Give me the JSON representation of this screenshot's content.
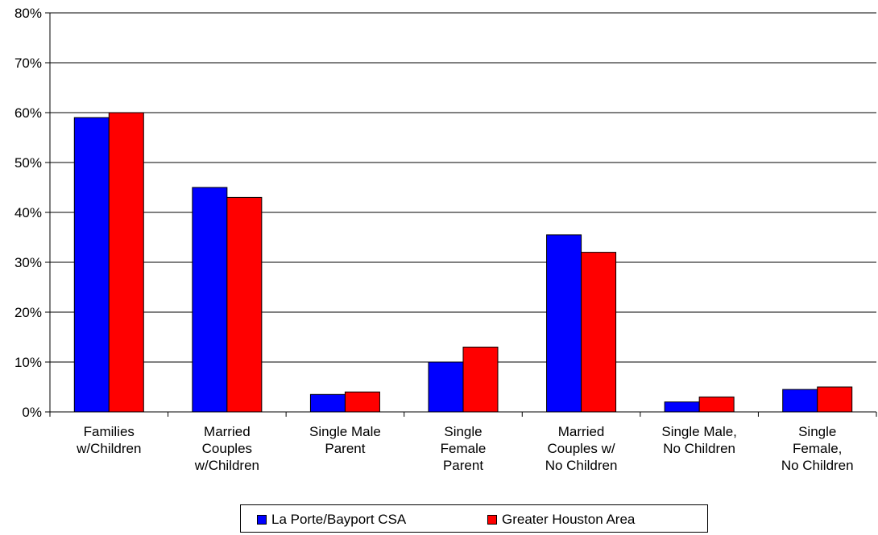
{
  "chart_data": {
    "type": "bar",
    "categories": [
      [
        "Families",
        "w/Children"
      ],
      [
        "Married",
        "Couples",
        "w/Children"
      ],
      [
        "Single Male",
        "Parent"
      ],
      [
        "Single",
        "Female",
        "Parent"
      ],
      [
        "Married",
        "Couples w/",
        "No Children"
      ],
      [
        "Single Male,",
        "No Children"
      ],
      [
        "Single",
        "Female,",
        "No Children"
      ]
    ],
    "series": [
      {
        "name": "La Porte/Bayport CSA",
        "color": "#0000ff",
        "values": [
          59,
          45,
          3.5,
          10,
          35.5,
          2,
          4.5
        ]
      },
      {
        "name": "Greater Houston Area",
        "color": "#ff0000",
        "values": [
          60,
          43,
          4,
          13,
          32,
          3,
          5
        ]
      }
    ],
    "ylim": [
      0,
      80
    ],
    "yticks": [
      "0%",
      "10%",
      "20%",
      "30%",
      "40%",
      "50%",
      "60%",
      "70%",
      "80%"
    ],
    "grid": true,
    "legend_position": "bottom"
  }
}
